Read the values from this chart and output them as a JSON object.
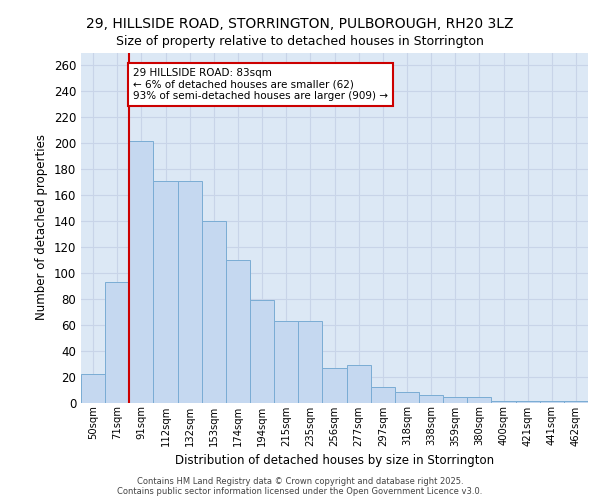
{
  "title_line1": "29, HILLSIDE ROAD, STORRINGTON, PULBOROUGH, RH20 3LZ",
  "title_line2": "Size of property relative to detached houses in Storrington",
  "xlabel": "Distribution of detached houses by size in Storrington",
  "ylabel": "Number of detached properties",
  "categories": [
    "50sqm",
    "71sqm",
    "91sqm",
    "112sqm",
    "132sqm",
    "153sqm",
    "174sqm",
    "194sqm",
    "215sqm",
    "235sqm",
    "256sqm",
    "277sqm",
    "297sqm",
    "318sqm",
    "338sqm",
    "359sqm",
    "380sqm",
    "400sqm",
    "421sqm",
    "441sqm",
    "462sqm"
  ],
  "values": [
    22,
    93,
    202,
    171,
    171,
    140,
    110,
    79,
    63,
    63,
    27,
    29,
    12,
    8,
    6,
    4,
    4,
    1,
    1,
    1,
    1
  ],
  "bar_color": "#c5d8f0",
  "bar_edge_color": "#7aacd4",
  "red_line_x": 1.5,
  "annotation_text": "29 HILLSIDE ROAD: 83sqm\n← 6% of detached houses are smaller (62)\n93% of semi-detached houses are larger (909) →",
  "annotation_box_color": "#ffffff",
  "annotation_box_edge": "#cc0000",
  "red_line_color": "#cc0000",
  "grid_color": "#c8d4e8",
  "plot_bg_color": "#dce8f5",
  "fig_bg_color": "#ffffff",
  "footer_line1": "Contains HM Land Registry data © Crown copyright and database right 2025.",
  "footer_line2": "Contains public sector information licensed under the Open Government Licence v3.0.",
  "ylim": [
    0,
    270
  ],
  "yticks": [
    0,
    20,
    40,
    60,
    80,
    100,
    120,
    140,
    160,
    180,
    200,
    220,
    240,
    260
  ]
}
